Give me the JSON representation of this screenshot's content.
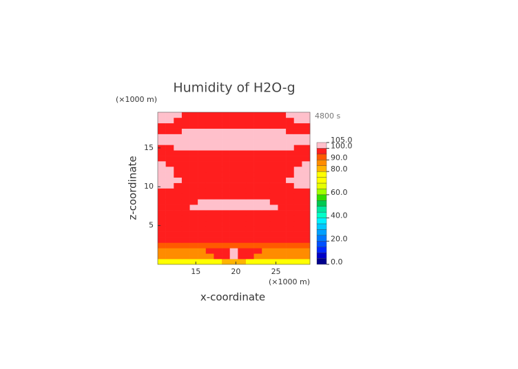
{
  "chart_data": {
    "type": "contour",
    "title": "Humidity of H2O-g",
    "x_label": "x-coordinate",
    "y_label": "z-coordinate",
    "x_unit": "(×1000 m)",
    "y_unit": "(×1000 m)",
    "annotation": "4800 s",
    "xlim": [
      10.25,
      29.25
    ],
    "ylim": [
      0,
      19.6
    ],
    "xticks": [
      15,
      20,
      25
    ],
    "yticks": [
      5,
      10,
      15
    ],
    "x": [
      10.75,
      11.75,
      12.75,
      13.75,
      14.75,
      15.75,
      16.75,
      17.75,
      18.75,
      19.75,
      20.75,
      21.75,
      22.75,
      23.75,
      24.75,
      25.75,
      26.75,
      27.75,
      28.75
    ],
    "z": [
      0.35,
      1.05,
      1.75,
      2.45,
      3.15,
      3.85,
      4.55,
      5.25,
      5.95,
      6.65,
      7.35,
      8.05,
      8.75,
      9.45,
      10.15,
      10.85,
      11.55,
      12.25,
      12.95,
      13.65,
      14.35,
      15.05,
      15.75,
      16.45,
      17.15,
      17.85,
      18.55,
      19.25
    ],
    "values": [
      [
        72,
        72,
        72,
        72,
        72,
        72,
        72,
        72,
        82,
        82,
        82,
        72,
        72,
        72,
        72,
        72,
        72,
        72,
        72
      ],
      [
        87,
        87,
        87,
        87,
        87,
        87,
        87,
        97,
        97,
        102,
        97,
        97,
        87,
        87,
        87,
        87,
        87,
        87,
        87
      ],
      [
        88,
        88,
        88,
        88,
        88,
        88,
        97,
        97,
        97,
        102,
        97,
        97,
        97,
        88,
        88,
        88,
        88,
        88,
        88
      ],
      [
        92,
        92,
        92,
        92,
        92,
        92,
        92,
        92,
        92,
        92,
        92,
        92,
        92,
        92,
        92,
        92,
        92,
        92,
        92
      ],
      [
        97,
        97,
        97,
        97,
        97,
        97,
        97,
        97,
        97,
        97,
        97,
        97,
        97,
        97,
        97,
        97,
        97,
        97,
        97
      ],
      [
        97,
        97,
        97,
        97,
        97,
        97,
        97,
        97,
        97,
        97,
        97,
        97,
        97,
        97,
        97,
        97,
        97,
        97,
        97
      ],
      [
        97,
        97,
        97,
        97,
        97,
        97,
        97,
        97,
        97,
        97,
        97,
        97,
        97,
        97,
        97,
        97,
        97,
        97,
        97
      ],
      [
        97,
        97,
        97,
        97,
        97,
        97,
        97,
        97,
        97,
        97,
        97,
        97,
        97,
        97,
        97,
        97,
        97,
        97,
        97
      ],
      [
        97,
        97,
        97,
        97,
        97,
        97,
        97,
        97,
        97,
        97,
        97,
        97,
        97,
        97,
        97,
        97,
        97,
        97,
        97
      ],
      [
        97,
        97,
        97,
        97,
        97,
        97,
        97,
        97,
        97,
        97,
        97,
        97,
        97,
        97,
        97,
        97,
        97,
        97,
        97
      ],
      [
        97,
        97,
        97,
        97,
        102,
        102,
        102,
        102,
        102,
        102,
        102,
        102,
        102,
        102,
        102,
        97,
        97,
        97,
        97
      ],
      [
        97,
        97,
        97,
        97,
        97,
        102,
        102,
        102,
        102,
        102,
        102,
        102,
        102,
        102,
        97,
        97,
        97,
        97,
        97
      ],
      [
        97,
        97,
        97,
        97,
        97,
        97,
        97,
        97,
        97,
        97,
        97,
        97,
        97,
        97,
        97,
        97,
        97,
        97,
        97
      ],
      [
        97,
        97,
        97,
        97,
        97,
        97,
        97,
        97,
        97,
        97,
        97,
        97,
        97,
        97,
        97,
        97,
        97,
        97,
        97
      ],
      [
        102,
        102,
        97,
        97,
        97,
        97,
        97,
        97,
        97,
        97,
        97,
        97,
        97,
        97,
        97,
        97,
        97,
        102,
        102
      ],
      [
        102,
        102,
        102,
        97,
        97,
        97,
        97,
        97,
        97,
        97,
        97,
        97,
        97,
        97,
        97,
        97,
        102,
        102,
        102
      ],
      [
        102,
        102,
        97,
        97,
        97,
        97,
        97,
        97,
        97,
        97,
        97,
        97,
        97,
        97,
        97,
        97,
        97,
        102,
        102
      ],
      [
        102,
        102,
        97,
        97,
        97,
        97,
        97,
        97,
        97,
        97,
        97,
        97,
        97,
        97,
        97,
        97,
        97,
        102,
        102
      ],
      [
        102,
        97,
        97,
        97,
        97,
        97,
        97,
        97,
        97,
        97,
        97,
        97,
        97,
        97,
        97,
        97,
        97,
        97,
        102
      ],
      [
        97,
        97,
        97,
        97,
        97,
        97,
        97,
        97,
        97,
        97,
        97,
        97,
        97,
        97,
        97,
        97,
        97,
        97,
        97
      ],
      [
        97,
        97,
        97,
        97,
        97,
        97,
        97,
        97,
        97,
        97,
        97,
        97,
        97,
        97,
        97,
        97,
        97,
        97,
        97
      ],
      [
        97,
        97,
        102,
        102,
        102,
        102,
        102,
        102,
        102,
        102,
        102,
        102,
        102,
        102,
        102,
        102,
        102,
        97,
        97
      ],
      [
        102,
        102,
        102,
        102,
        102,
        102,
        102,
        102,
        102,
        102,
        102,
        102,
        102,
        102,
        102,
        102,
        102,
        102,
        102
      ],
      [
        102,
        102,
        102,
        102,
        102,
        102,
        102,
        102,
        102,
        102,
        102,
        102,
        102,
        102,
        102,
        102,
        102,
        102,
        102
      ],
      [
        97,
        97,
        97,
        102,
        102,
        102,
        102,
        102,
        102,
        102,
        102,
        102,
        102,
        102,
        102,
        102,
        97,
        97,
        97
      ],
      [
        97,
        97,
        97,
        97,
        97,
        97,
        97,
        97,
        97,
        97,
        97,
        97,
        97,
        97,
        97,
        97,
        97,
        97,
        97
      ],
      [
        102,
        102,
        97,
        97,
        97,
        97,
        97,
        97,
        97,
        97,
        97,
        97,
        97,
        97,
        97,
        97,
        97,
        102,
        102
      ],
      [
        102,
        102,
        102,
        97,
        97,
        97,
        97,
        97,
        97,
        97,
        97,
        97,
        97,
        97,
        97,
        97,
        102,
        102,
        102
      ]
    ],
    "colorbar": {
      "levels": [
        0,
        5,
        10,
        15,
        20,
        25,
        30,
        35,
        40,
        45,
        50,
        55,
        60,
        65,
        70,
        75,
        80,
        85,
        90,
        95,
        100,
        105
      ],
      "colors": [
        "#00008c",
        "#0000c8",
        "#0028ff",
        "#0050ff",
        "#0078ff",
        "#00a0ff",
        "#00c8ff",
        "#00f0ff",
        "#00ffc8",
        "#00e6a0",
        "#00c850",
        "#32dc00",
        "#a0ff00",
        "#e6ff00",
        "#ffff00",
        "#ffff00",
        "#ffb400",
        "#ff8c00",
        "#ff5a00",
        "#ff1e1e",
        "#ffc0cb"
      ],
      "ticks": [
        {
          "value": 0,
          "label": "0.0"
        },
        {
          "value": 20,
          "label": "20.0"
        },
        {
          "value": 40,
          "label": "40.0"
        },
        {
          "value": 60,
          "label": "60.0"
        },
        {
          "value": 80,
          "label": "80.0"
        },
        {
          "value": 90,
          "label": "90.0"
        },
        {
          "value": 100,
          "label": "100.0"
        },
        {
          "value": 105,
          "label": "105.0"
        }
      ]
    }
  }
}
